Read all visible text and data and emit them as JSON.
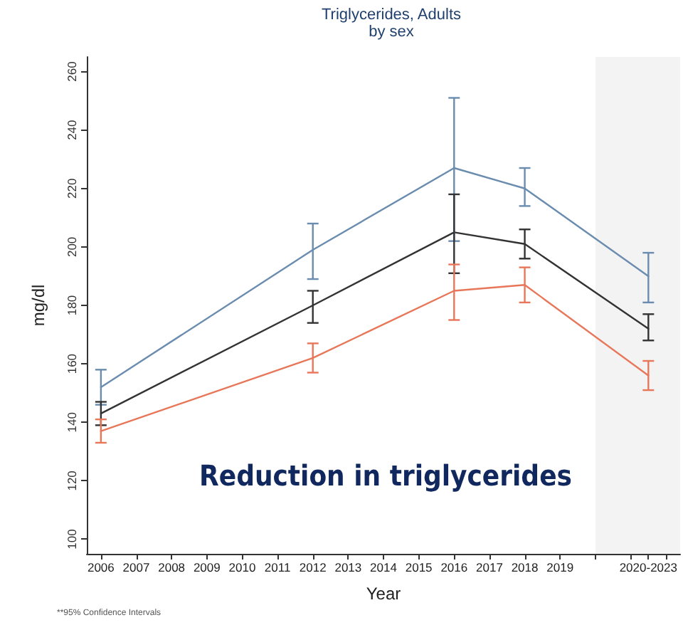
{
  "chart_data": {
    "type": "line",
    "title": "Triglycerides, Adults",
    "subtitle": "by sex",
    "xlabel": "Year",
    "ylabel": "mg/dl",
    "annotations": [
      "Reduction in triglycerides",
      "**95% Confidence Intervals"
    ],
    "x": [
      2006,
      2012,
      2016,
      2018,
      2021.5
    ],
    "series": [
      {
        "color": "#6a8caf",
        "values": [
          152,
          199,
          227,
          220,
          190
        ],
        "errors": [
          [
            146,
            158
          ],
          [
            189,
            208
          ],
          [
            202,
            251
          ],
          [
            214,
            227
          ],
          [
            181,
            198
          ]
        ]
      },
      {
        "color": "#333333",
        "values": [
          143,
          180,
          205,
          201,
          172
        ],
        "errors": [
          [
            139,
            147
          ],
          [
            174,
            185
          ],
          [
            191,
            218
          ],
          [
            196,
            206
          ],
          [
            168,
            177
          ]
        ]
      },
      {
        "color": "#e8775a",
        "values": [
          137,
          162,
          185,
          187,
          156
        ],
        "errors": [
          [
            133,
            141
          ],
          [
            157,
            167
          ],
          [
            175,
            194
          ],
          [
            181,
            193
          ],
          [
            151,
            161
          ]
        ]
      }
    ],
    "xlim": [
      2005.6,
      2022.4
    ],
    "xticks": [
      2006,
      2007,
      2008,
      2009,
      2010,
      2011,
      2012,
      2013,
      2014,
      2015,
      2016,
      2017,
      2018,
      2019,
      {
        "value": 2020,
        "label": null
      },
      {
        "value": 2021,
        "label": null
      },
      {
        "value": 2021.5,
        "label": "2020-2023"
      },
      {
        "value": 2022,
        "label": null
      }
    ],
    "ylim": [
      95,
      265
    ],
    "yticks": [
      100,
      120,
      140,
      160,
      180,
      200,
      220,
      240,
      260
    ],
    "bands": [
      {
        "axis": "x",
        "from": 2020,
        "to": 2022.4,
        "color": "#f3f3f3"
      }
    ],
    "grid": false,
    "marker": "none",
    "line_style": "solid"
  }
}
